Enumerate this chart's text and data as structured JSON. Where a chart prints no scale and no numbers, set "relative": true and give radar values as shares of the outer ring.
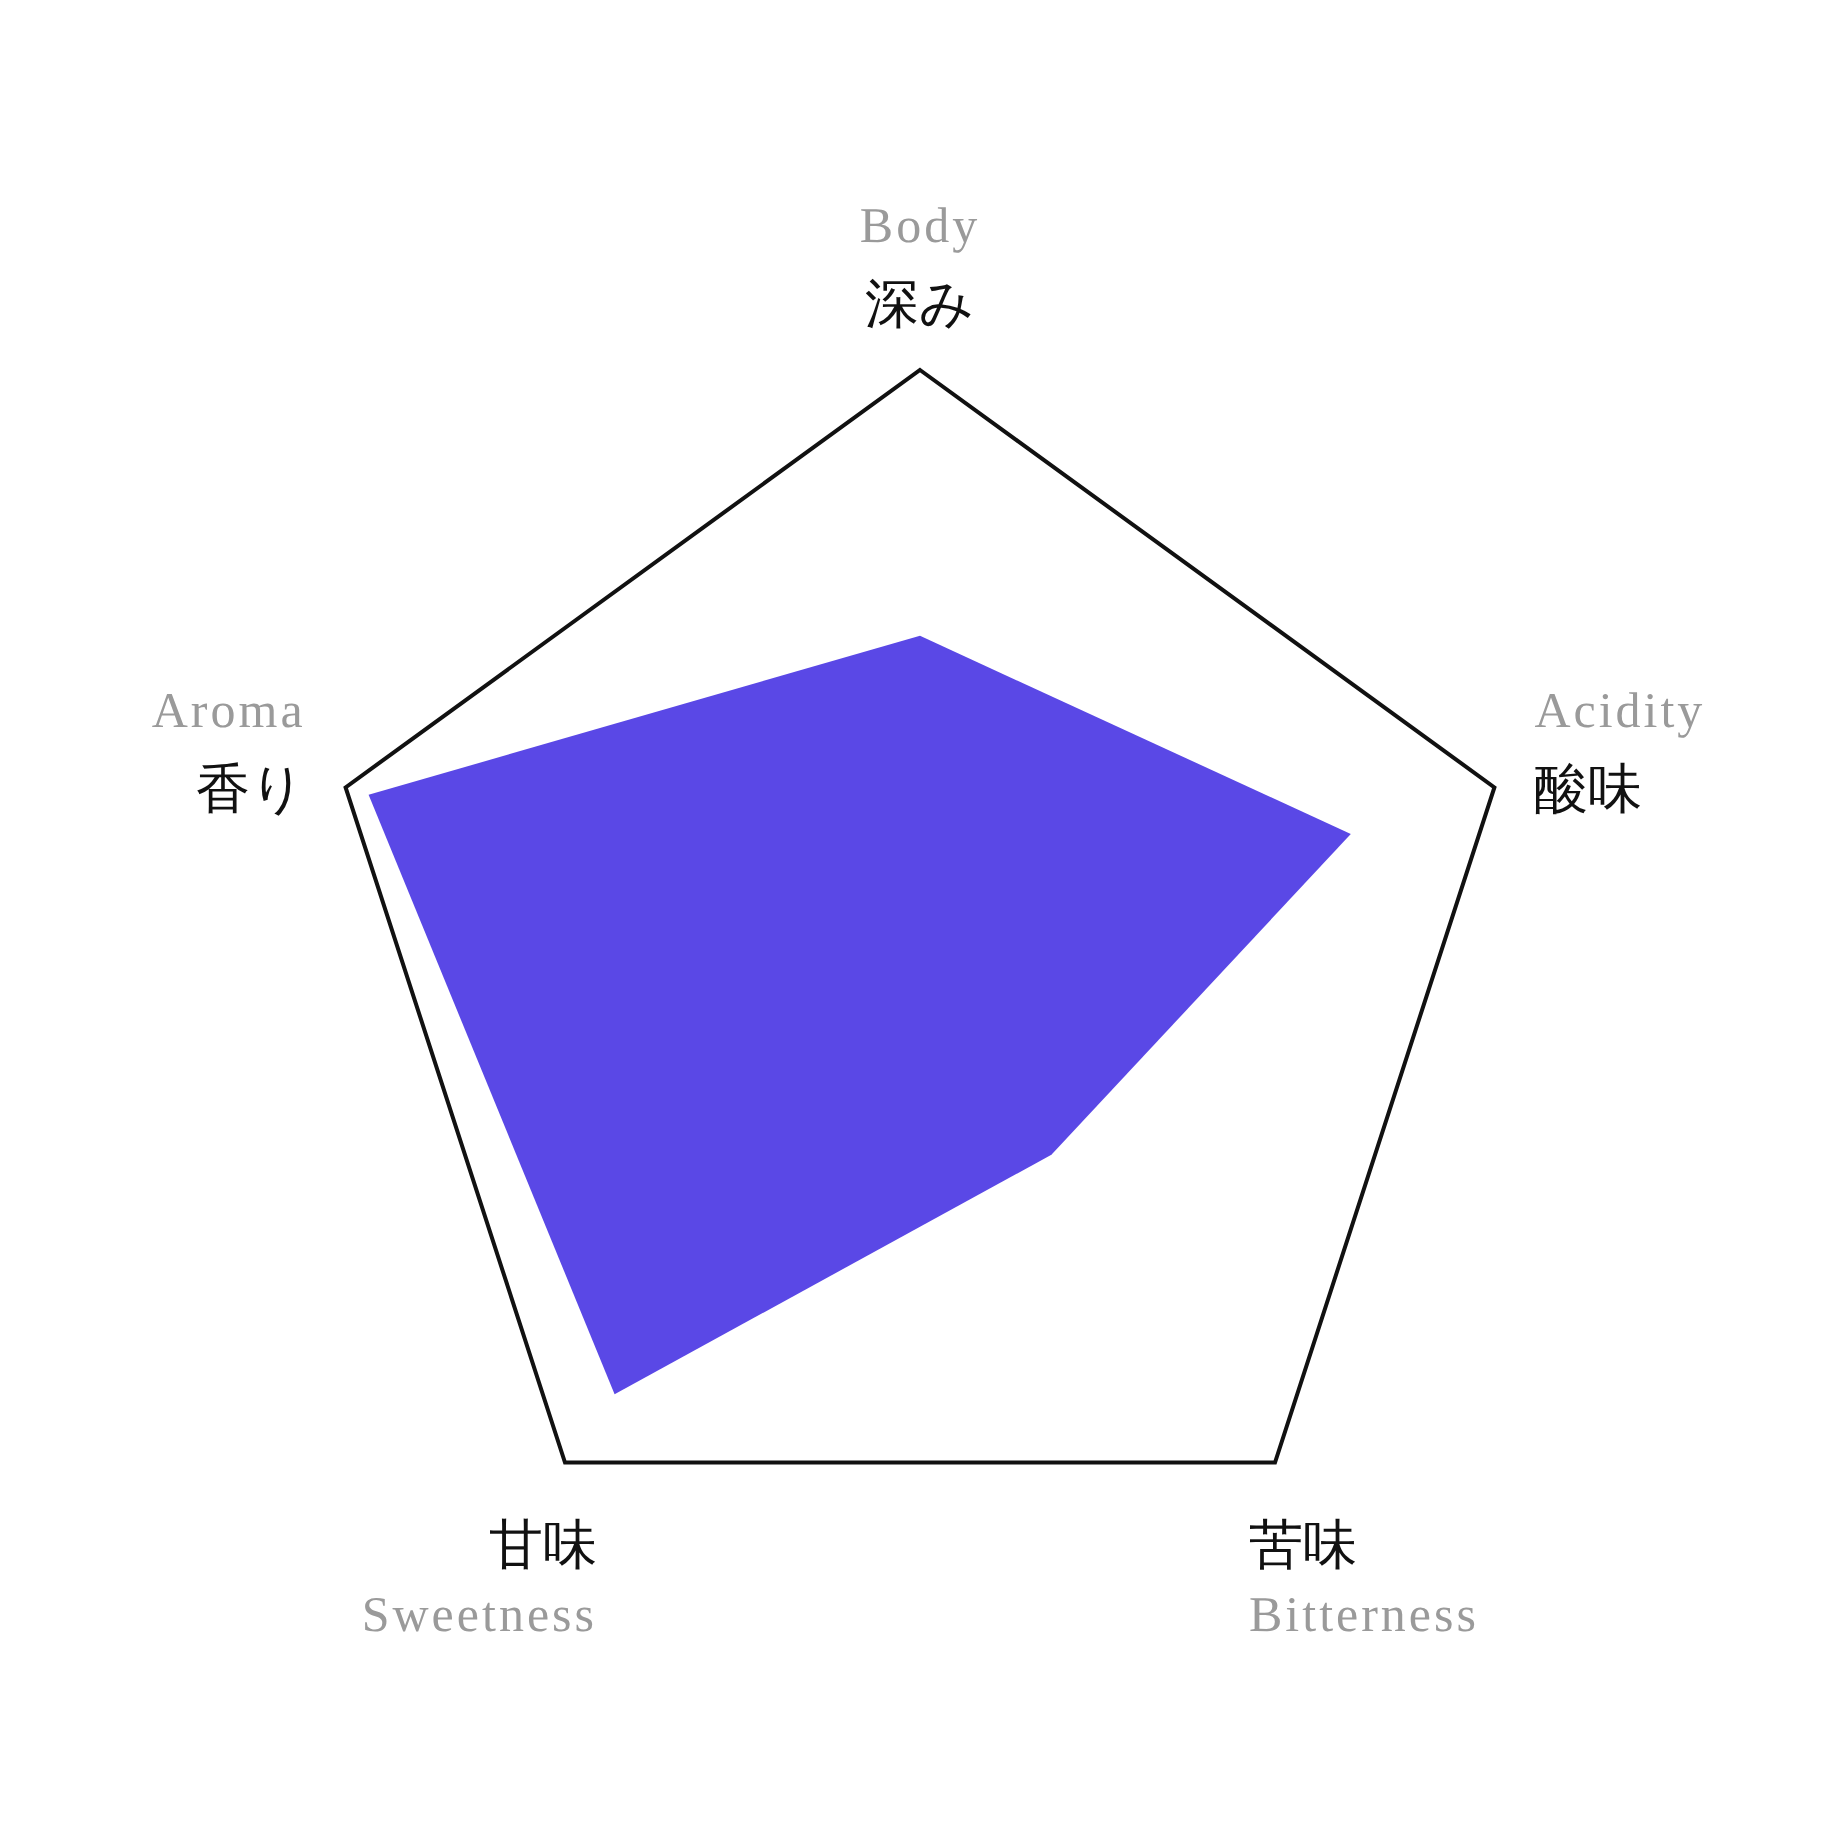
{
  "chart_data": {
    "type": "radar",
    "relative": true,
    "categories": [
      "Body\n深み",
      "Acidity\n酸味",
      "苦味\nBitterness",
      "甘味\nSweetness",
      "Aroma\n香り"
    ],
    "series": [
      {
        "color": "#5a48e6",
        "values": [
          0.56,
          0.75,
          0.37,
          0.86,
          0.96
        ]
      }
    ]
  }
}
